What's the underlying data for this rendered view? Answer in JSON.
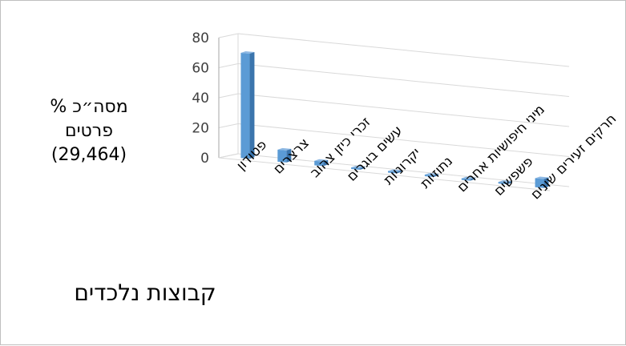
{
  "chart_data": {
    "type": "bar",
    "categories": [
      "פטודון",
      "צרצרים",
      "זכרי כיזן צהוב",
      "עשים בוגרים",
      "יקרוניות",
      "נתוזיות",
      "מיני חיפושיות אחרים",
      "פשפשים",
      "חרקים זעירים שונים"
    ],
    "values": [
      70,
      8,
      3,
      0.5,
      0.4,
      0.3,
      0.6,
      0.9,
      6
    ],
    "ylim": [
      0,
      80
    ],
    "yticks": [
      "0",
      "20",
      "40",
      "60",
      "80"
    ],
    "ylabel_lines": [
      "% מסה״כ",
      "פרטים",
      "(29,464)"
    ],
    "xlabel": "קבוצות נלכדים",
    "grid": true,
    "bar_color": "#5b9bd5"
  }
}
